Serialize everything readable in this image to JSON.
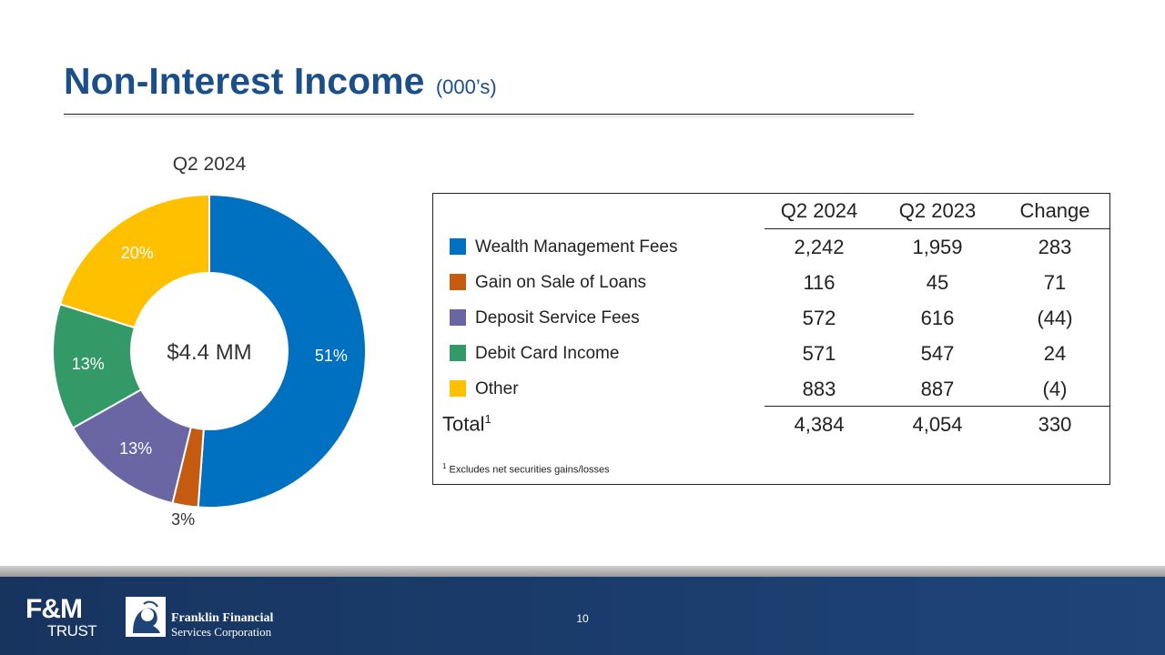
{
  "title": {
    "main": "Non-Interest Income",
    "sub": "(000’s)"
  },
  "chart_data": {
    "type": "pie",
    "title": "Q2 2024",
    "center_label": "$4.4 MM",
    "categories": [
      "Wealth Management Fees",
      "Gain on Sale of Loans",
      "Deposit Service Fees",
      "Debit Card Income",
      "Other"
    ],
    "values": [
      2242,
      116,
      572,
      571,
      883
    ],
    "percent_labels": [
      "51%",
      "3%",
      "13%",
      "13%",
      "20%"
    ],
    "colors": [
      "#0070c0",
      "#c55a11",
      "#6a66a3",
      "#339966",
      "#ffc000"
    ]
  },
  "table": {
    "headers": [
      "Q2 2024",
      "Q2 2023",
      "Change"
    ],
    "rows": [
      {
        "label": "Wealth Management  Fees",
        "color": "#0070c0",
        "values": [
          "2,242",
          "1,959",
          "283"
        ]
      },
      {
        "label": "Gain on Sale of Loans",
        "color": "#c55a11",
        "values": [
          "116",
          "45",
          "71"
        ]
      },
      {
        "label": "Deposit Service Fees",
        "color": "#6a66a3",
        "values": [
          "572",
          "616",
          "(44)"
        ]
      },
      {
        "label": "Debit Card Income",
        "color": "#339966",
        "values": [
          "571",
          "547",
          "24"
        ]
      },
      {
        "label": "Other",
        "color": "#ffc000",
        "values": [
          "883",
          "887",
          "(4)"
        ]
      }
    ],
    "total": {
      "label": "Total",
      "sup": "1",
      "values": [
        "4,384",
        "4,054",
        "330"
      ]
    },
    "footnote": {
      "sup": "1",
      "text": "Excludes net securities gains/losses"
    }
  },
  "footer": {
    "page_number": "10",
    "logo_fm_top": "F&M",
    "logo_fm_bottom": "TRUST",
    "logo_ff_line1": "Franklin Financial",
    "logo_ff_line2": "Services Corporation"
  }
}
